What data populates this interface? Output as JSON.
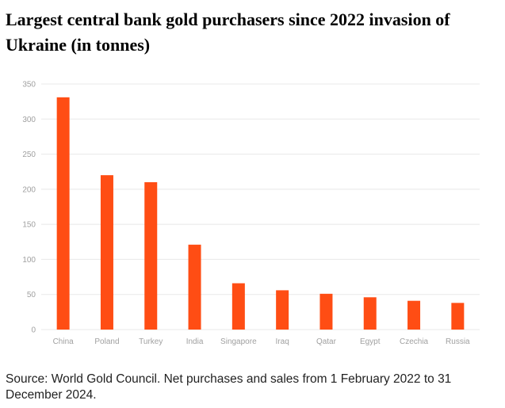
{
  "chart_data": {
    "type": "bar",
    "title": "Largest central bank gold purchasers since 2022 invasion of Ukraine (in tonnes)",
    "categories": [
      "China",
      "Poland",
      "Turkey",
      "India",
      "Singapore",
      "Iraq",
      "Qatar",
      "Egypt",
      "Czechia",
      "Russia"
    ],
    "values": [
      331,
      220,
      210,
      121,
      66,
      56,
      51,
      46,
      41,
      38
    ],
    "xlabel": "",
    "ylabel": "",
    "ylim": [
      0,
      350
    ],
    "yticks": [
      0,
      50,
      100,
      150,
      200,
      250,
      300,
      350
    ],
    "grid": true,
    "colors": {
      "bar": "#ff4d14"
    }
  },
  "source_note": "Source:  World Gold Council. Net purchases and sales from 1 February 2022 to 31 December 2024."
}
